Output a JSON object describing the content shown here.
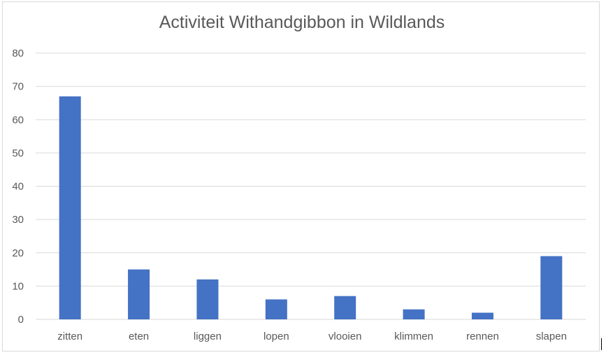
{
  "chart_data": {
    "type": "bar",
    "title": "Activiteit Withandgibbon in Wildlands",
    "xlabel": "",
    "ylabel": "",
    "categories": [
      "zitten",
      "eten",
      "liggen",
      "lopen",
      "vlooien",
      "klimmen",
      "rennen",
      "slapen"
    ],
    "values": [
      67,
      15,
      12,
      6,
      7,
      3,
      2,
      19
    ],
    "ylim": [
      0,
      80
    ],
    "yticks": [
      "0",
      "10",
      "20",
      "30",
      "40",
      "50",
      "60",
      "70",
      "80"
    ],
    "grid": true,
    "legend": "none",
    "bar_color": "#4472c4",
    "grid_color": "#d9d9d9",
    "text_color": "#595959"
  }
}
